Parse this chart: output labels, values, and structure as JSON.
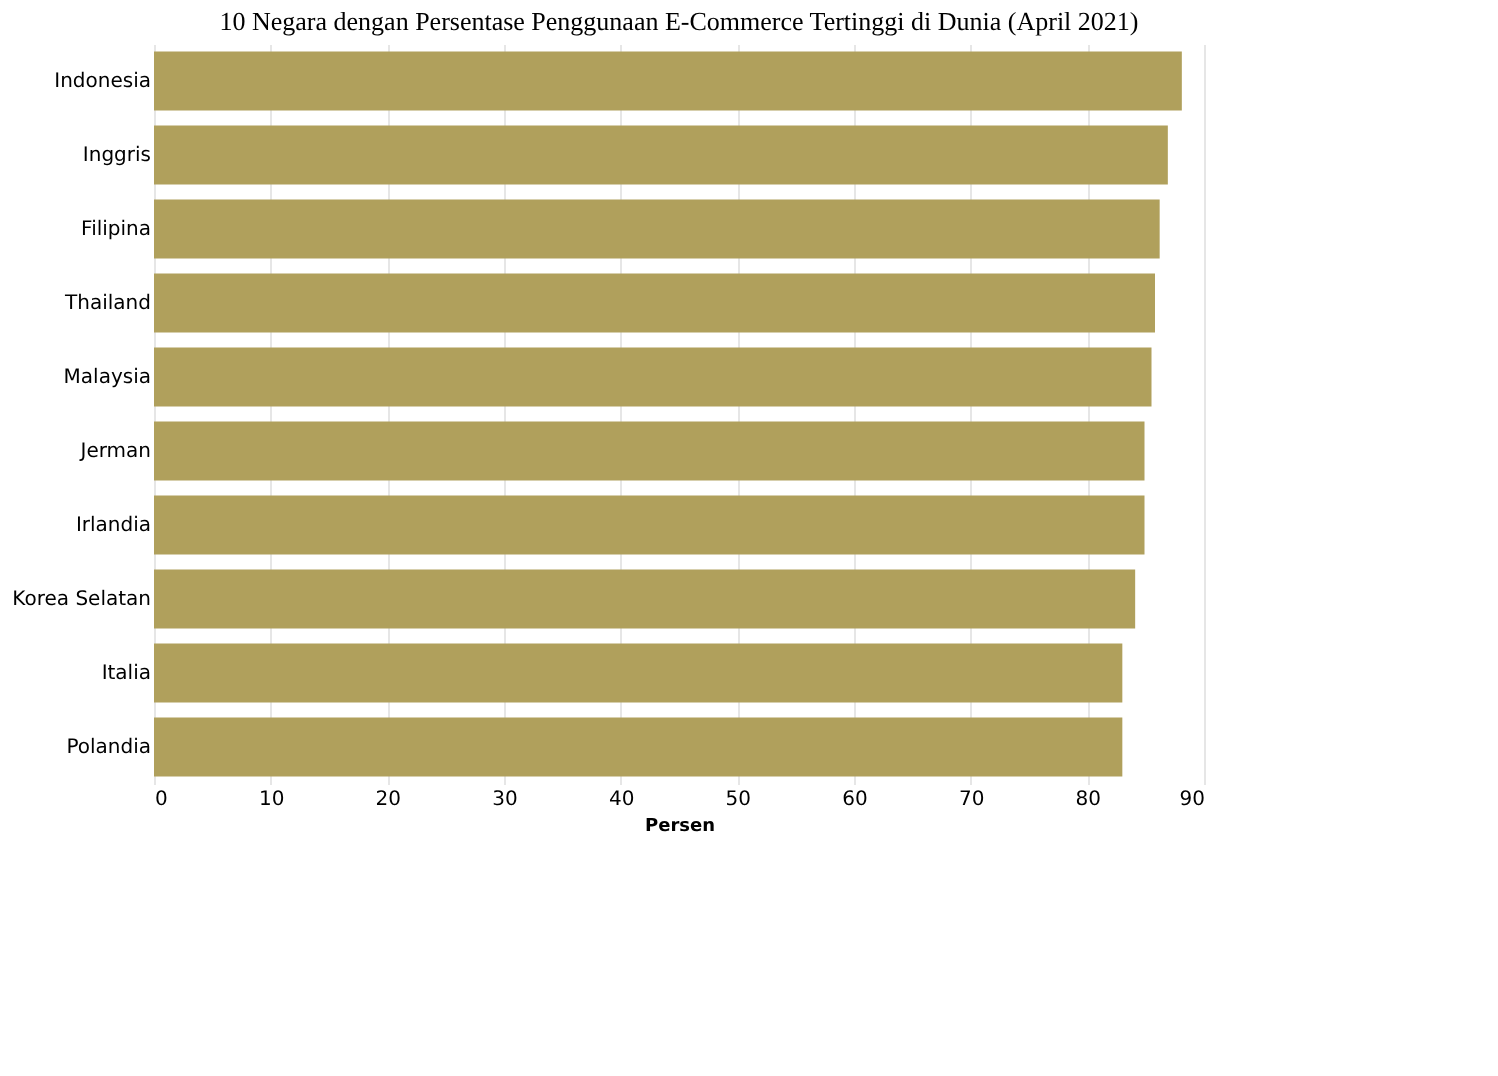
{
  "chart_data": {
    "type": "bar",
    "orientation": "horizontal",
    "title": "10 Negara dengan Persentase Penggunaan E-Commerce Tertinggi di Dunia (April 2021)",
    "categories": [
      "Indonesia",
      "Inggris",
      "Filipina",
      "Thailand",
      "Malaysia",
      "Jerman",
      "Irlandia",
      "Korea Selatan",
      "Italia",
      "Polandia"
    ],
    "values": [
      88.1,
      86.9,
      86.2,
      85.8,
      85.5,
      84.9,
      84.9,
      84.1,
      83.0,
      83.0
    ],
    "color": "#b0a05c",
    "xlabel": "Persen",
    "xlim": [
      0,
      90
    ],
    "xticks": [
      0,
      10,
      20,
      30,
      40,
      50,
      60,
      70,
      80,
      90
    ],
    "grid": "x"
  }
}
